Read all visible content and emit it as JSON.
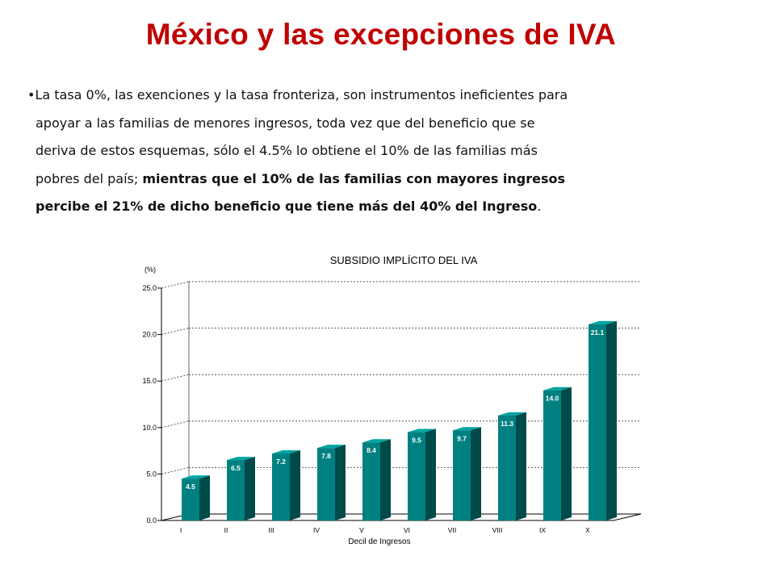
{
  "slide": {
    "title": "México y las excepciones de IVA",
    "bullet": "•",
    "line1": "La tasa 0%, las exenciones y la tasa fronteriza, son instrumentos ineficientes para",
    "line2": "apoyar a las familias de menores ingresos, toda vez que del beneficio que se",
    "line3": "deriva de estos esquemas, sólo el 4.5% lo obtiene el 10% de las familias más",
    "line4_normal": "pobres del país; ",
    "line4_bold": "mientras que el 10% de las familias con mayores ingresos",
    "line5_bold": "percibe el 21% de dicho beneficio que tiene más del 40% del Ingreso",
    "line5_end": "."
  },
  "chart_data": {
    "type": "bar",
    "title": "SUBSIDIO IMPLÍCITO DEL IVA",
    "xlabel": "Decil de Ingresos",
    "ylabel": "(%)",
    "categories": [
      "I",
      "II",
      "III",
      "IV",
      "V",
      "VI",
      "VII",
      "VIII",
      "IX",
      "X"
    ],
    "values": [
      4.5,
      6.5,
      7.2,
      7.8,
      8.4,
      9.5,
      9.7,
      11.3,
      14.0,
      21.1
    ],
    "value_labels": [
      "4.5",
      "6.5",
      "7.2",
      "7.8",
      "8.4",
      "9.5",
      "9.7",
      "11.3",
      "14.0",
      "21.1"
    ],
    "ylim": [
      0,
      25
    ],
    "yticks": [
      0,
      5,
      10,
      15,
      20,
      25
    ],
    "ytick_labels": [
      "0.0",
      "5.0",
      "10.0",
      "15.0",
      "20.0",
      "25.0"
    ],
    "grid": true,
    "legend": "none",
    "bar_color": "#008080",
    "bar_side_color": "#004a4a",
    "bar_top_color": "#00a3a3"
  }
}
